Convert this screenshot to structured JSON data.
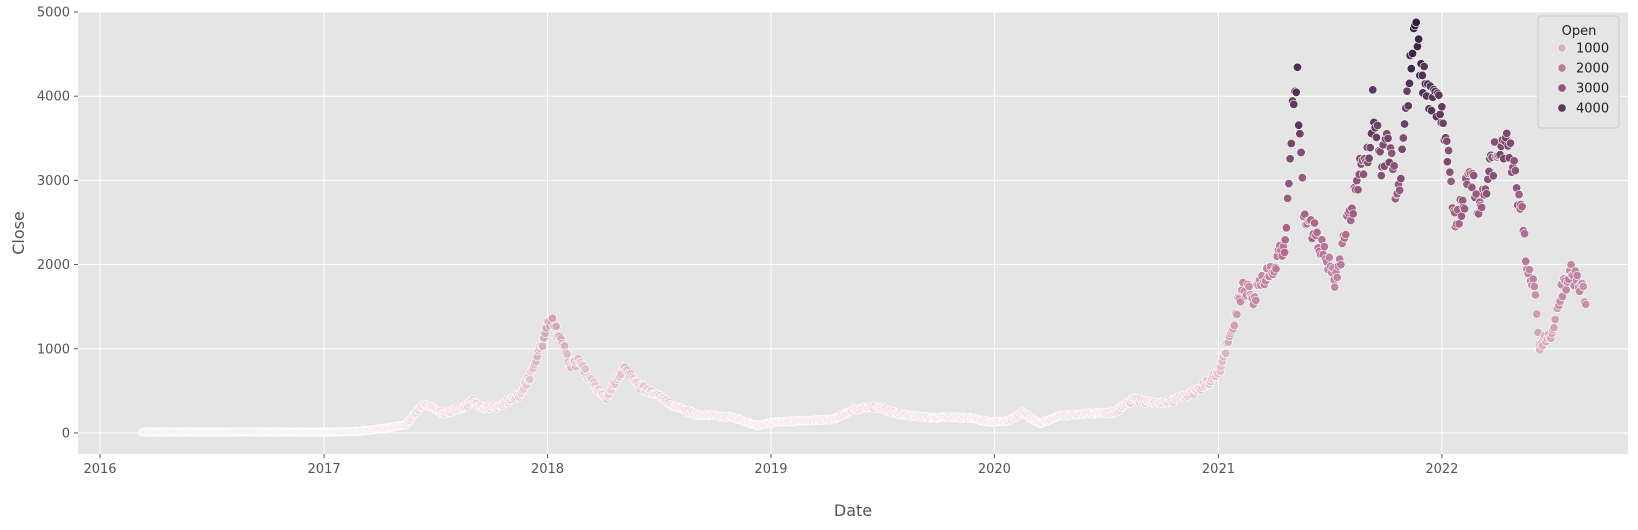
{
  "chart_data": {
    "type": "scatter",
    "title": "",
    "xlabel": "Date",
    "ylabel": "Close",
    "xlim": [
      "2015-11-26",
      "2022-11-01"
    ],
    "ylim": [
      -250,
      5000
    ],
    "x_ticks": [
      "2016-01-01",
      "2017-01-01",
      "2018-01-01",
      "2019-01-01",
      "2020-01-01",
      "2021-01-01",
      "2022-01-01"
    ],
    "x_tick_labels": [
      "2016",
      "2017",
      "2018",
      "2019",
      "2020",
      "2021",
      "2022"
    ],
    "y_ticks": [
      0,
      1000,
      2000,
      3000,
      4000,
      5000
    ],
    "y_tick_labels": [
      "0",
      "1000",
      "2000",
      "3000",
      "4000",
      "5000"
    ],
    "grid": true,
    "hue": "Open",
    "hue_range": [
      0,
      4800
    ],
    "legend": {
      "title": "Open",
      "position": "top-right",
      "entries": [
        {
          "label": "1000",
          "value": 1000
        },
        {
          "label": "2000",
          "value": 2000
        },
        {
          "label": "3000",
          "value": 3000
        },
        {
          "label": "4000",
          "value": 4000
        }
      ]
    },
    "colors": {
      "background": "#e5e5e5",
      "grid": "#ffffff",
      "hue_low": "#f7e6e6",
      "hue_mid": "#b0698e",
      "hue_high": "#2d1e3e"
    },
    "series": [
      {
        "x": [
          "2016-03-10",
          "2016-05-01",
          "2016-07-01",
          "2016-09-01",
          "2016-11-01",
          "2017-01-01",
          "2017-03-01",
          "2017-04-15",
          "2017-05-15",
          "2017-06-12",
          "2017-07-15",
          "2017-08-15",
          "2017-09-01",
          "2017-09-15",
          "2017-10-15",
          "2017-11-15",
          "2017-12-05",
          "2017-12-20",
          "2018-01-05",
          "2018-01-13",
          "2018-01-25",
          "2018-02-06",
          "2018-02-20",
          "2018-03-10",
          "2018-04-05",
          "2018-05-05",
          "2018-06-01",
          "2018-07-01",
          "2018-08-01",
          "2018-09-01",
          "2018-10-01",
          "2018-11-01",
          "2018-12-10",
          "2019-01-10",
          "2019-02-10",
          "2019-03-15",
          "2019-04-15",
          "2019-05-15",
          "2019-06-25",
          "2019-07-25",
          "2019-08-25",
          "2019-09-25",
          "2019-10-25",
          "2019-11-25",
          "2019-12-25",
          "2020-01-25",
          "2020-02-15",
          "2020-03-15",
          "2020-04-15",
          "2020-05-15",
          "2020-06-15",
          "2020-07-15",
          "2020-08-15",
          "2020-09-15",
          "2020-10-15",
          "2020-11-15",
          "2020-12-15",
          "2021-01-05",
          "2021-01-25",
          "2021-02-10",
          "2021-02-25",
          "2021-03-15",
          "2021-04-05",
          "2021-04-20",
          "2021-05-02",
          "2021-05-10",
          "2021-05-20",
          "2021-06-05",
          "2021-06-25",
          "2021-07-10",
          "2021-07-20",
          "2021-08-01",
          "2021-08-20",
          "2021-09-02",
          "2021-09-10",
          "2021-09-25",
          "2021-10-05",
          "2021-10-20",
          "2021-11-01",
          "2021-11-10",
          "2021-11-20",
          "2021-12-01",
          "2021-12-15",
          "2022-01-01",
          "2022-01-10",
          "2022-01-23",
          "2022-02-05",
          "2022-02-20",
          "2022-03-05",
          "2022-03-20",
          "2022-04-02",
          "2022-04-15",
          "2022-05-01",
          "2022-05-10",
          "2022-05-20",
          "2022-06-01",
          "2022-06-10",
          "2022-06-18",
          "2022-07-01",
          "2022-07-15",
          "2022-08-01",
          "2022-08-10",
          "2022-08-25"
        ],
        "y": [
          10,
          12,
          11,
          13,
          10,
          9,
          20,
          60,
          100,
          350,
          230,
          300,
          380,
          300,
          320,
          450,
          700,
          1000,
          1330,
          1250,
          1100,
          800,
          850,
          650,
          400,
          780,
          550,
          440,
          300,
          220,
          210,
          180,
          90,
          130,
          140,
          150,
          170,
          280,
          310,
          230,
          200,
          180,
          185,
          175,
          130,
          150,
          240,
          110,
          200,
          220,
          230,
          240,
          400,
          360,
          380,
          450,
          600,
          760,
          1300,
          1750,
          1600,
          1800,
          2000,
          2300,
          3800,
          4150,
          2600,
          2400,
          2100,
          1800,
          2100,
          2500,
          3100,
          3300,
          3900,
          3200,
          3400,
          2800,
          3500,
          4300,
          4800,
          4200,
          4000,
          3800,
          3300,
          2500,
          2800,
          3000,
          2600,
          3200,
          3300,
          3500,
          3000,
          2700,
          2000,
          1800,
          1000,
          1100,
          1200,
          1700,
          1900,
          1800,
          1600
        ],
        "open": [
          10,
          12,
          11,
          13,
          10,
          9,
          20,
          60,
          100,
          350,
          230,
          300,
          380,
          300,
          320,
          450,
          700,
          1000,
          1330,
          1250,
          1100,
          800,
          850,
          650,
          400,
          780,
          550,
          440,
          300,
          220,
          210,
          180,
          90,
          130,
          140,
          150,
          170,
          280,
          310,
          230,
          200,
          180,
          185,
          175,
          130,
          150,
          240,
          110,
          200,
          220,
          230,
          240,
          400,
          360,
          380,
          450,
          600,
          760,
          1300,
          1750,
          1600,
          1800,
          2000,
          2300,
          3800,
          4150,
          2600,
          2400,
          2100,
          1800,
          2100,
          2500,
          3100,
          3300,
          3900,
          3200,
          3400,
          2800,
          3500,
          4300,
          4800,
          4200,
          4000,
          3800,
          3300,
          2500,
          2800,
          3000,
          2600,
          3200,
          3300,
          3500,
          3000,
          2700,
          2000,
          1800,
          1000,
          1100,
          1200,
          1700,
          1900,
          1800,
          1600
        ]
      }
    ]
  }
}
